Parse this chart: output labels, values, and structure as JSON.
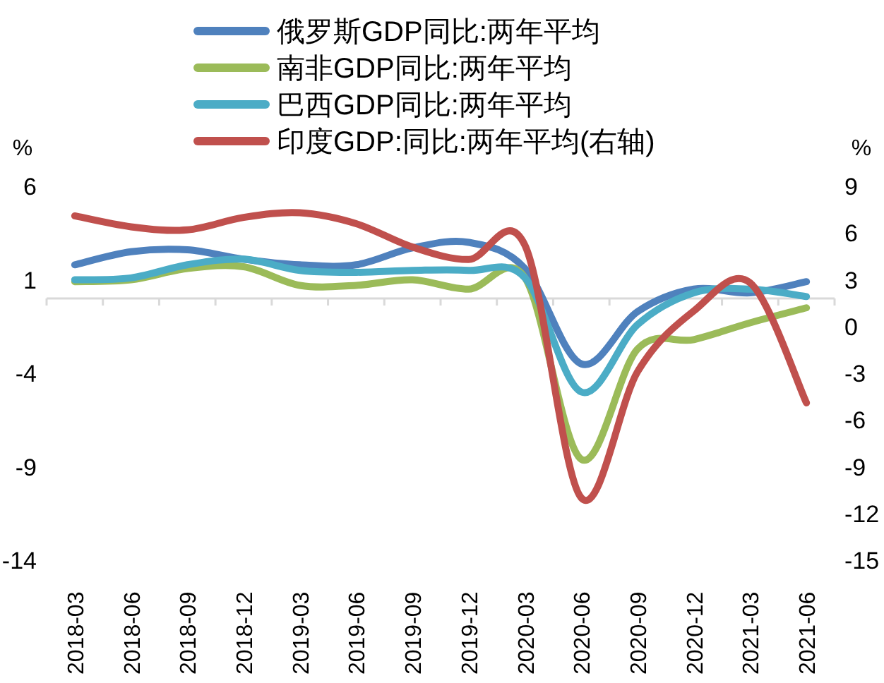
{
  "chart_data": {
    "type": "line",
    "ylabel": "%",
    "y2label": "%",
    "categories": [
      "2018-03",
      "2018-06",
      "2018-09",
      "2018-12",
      "2019-03",
      "2019-06",
      "2019-09",
      "2019-12",
      "2020-03",
      "2020-06",
      "2020-09",
      "2020-12",
      "2021-03",
      "2021-06"
    ],
    "series": [
      {
        "name": "俄罗斯GDP同比:两年平均",
        "color": "#4f81bd",
        "values": [
          1.8,
          2.5,
          2.6,
          2.1,
          1.8,
          1.8,
          2.7,
          3.0,
          1.6,
          -3.5,
          -0.7,
          0.5,
          0.3,
          0.9
        ]
      },
      {
        "name": "南非GDP同比:两年平均",
        "color": "#9bbb59",
        "values": [
          0.9,
          1.0,
          1.6,
          1.7,
          0.7,
          0.7,
          1.0,
          0.5,
          1.1,
          -8.6,
          -2.7,
          -2.2,
          -1.3,
          -0.5
        ]
      },
      {
        "name": "巴西GDP同比:两年平均",
        "color": "#4bacc6",
        "values": [
          1.0,
          1.1,
          1.8,
          2.1,
          1.5,
          1.4,
          1.5,
          1.5,
          1.1,
          -5.0,
          -1.4,
          0.3,
          0.5,
          0.1
        ]
      },
      {
        "name": "印度GDP:同比:两年平均(右轴)",
        "color": "#c0504d",
        "axis": "y2",
        "values": [
          7.1,
          6.4,
          6.2,
          7.0,
          7.3,
          6.6,
          5.1,
          4.3,
          5.2,
          -11.0,
          -2.9,
          1.0,
          2.8,
          -4.9
        ]
      }
    ],
    "ylim": [
      -14,
      6
    ],
    "yticks": [
      -14,
      -9,
      -4,
      1,
      6
    ],
    "y2lim": [
      -15,
      9
    ],
    "y2ticks": [
      -15,
      -12,
      -9,
      -6,
      -3,
      0,
      3,
      6,
      9
    ],
    "grid": false,
    "legend": "top",
    "line_style": "solid"
  }
}
